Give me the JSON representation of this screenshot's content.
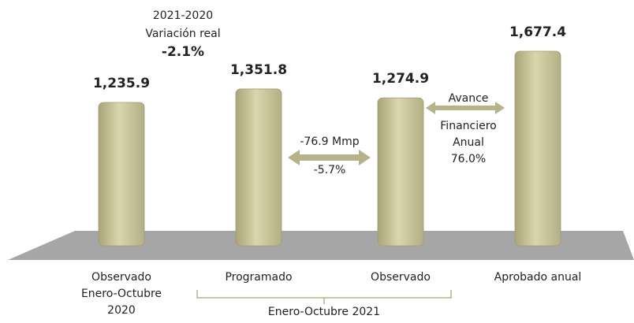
{
  "chart_data": {
    "type": "bar",
    "categories": [
      "Observado\nEnero-Octubre\n2020",
      "Programado",
      "Observado",
      "Aprobado anual"
    ],
    "values": [
      1235.9,
      1351.8,
      1274.9,
      1677.4
    ],
    "value_labels": [
      "1,235.9",
      "1,351.8",
      "1,274.9",
      "1,677.4"
    ],
    "color": "#c9c59c",
    "group_label": "Enero-Octubre 2021",
    "annotations": {
      "real_variation": [
        "2021-2020",
        "Variación real",
        "-2.1%"
      ],
      "difference": [
        "-76.9 Mmp",
        "-5.7%"
      ],
      "progress": [
        "Avance",
        "Financiero",
        "Anual",
        "76.0%"
      ]
    }
  }
}
